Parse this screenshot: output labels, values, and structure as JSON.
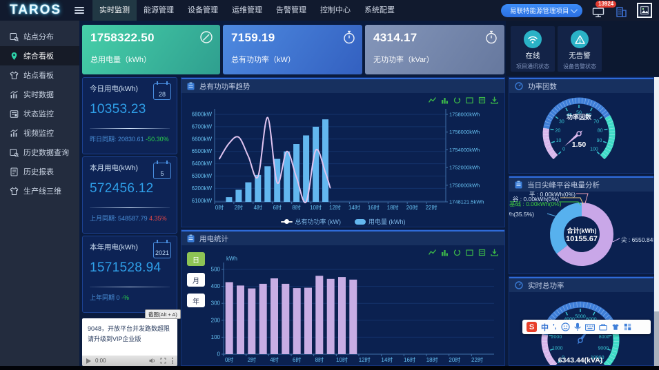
{
  "topbar": {
    "logo": "TAROS",
    "nav": [
      {
        "label": "实时监测"
      },
      {
        "label": "能源管理"
      },
      {
        "label": "设备管理"
      },
      {
        "label": "运维管理"
      },
      {
        "label": "告警管理"
      },
      {
        "label": "控制中心"
      },
      {
        "label": "系统配置"
      }
    ],
    "project_select": "易联特能源管理项目",
    "alarm_badge": "13924"
  },
  "sidebar": [
    {
      "label": "站点分布"
    },
    {
      "label": "综合看板"
    },
    {
      "label": "站点看板"
    },
    {
      "label": "实时数据"
    },
    {
      "label": "状态监控"
    },
    {
      "label": "视频监控"
    },
    {
      "label": "历史数据查询"
    },
    {
      "label": "历史报表"
    },
    {
      "label": "生产线三维"
    }
  ],
  "kpis": [
    {
      "value": "1758322.50",
      "label": "总用电量（kWh）"
    },
    {
      "value": "7159.19",
      "label": "总有功功率（kW）"
    },
    {
      "value": "4314.17",
      "label": "无功功率（kVar）"
    }
  ],
  "status_tiles": [
    {
      "title": "在线",
      "subtitle": "项目通讯状态"
    },
    {
      "title": "无告警",
      "subtitle": "设备告警状态"
    }
  ],
  "stat_cards": [
    {
      "title": "今日用电(kWh)",
      "calendar_num": "28",
      "value": "10353.23",
      "compare_label": "昨日同期:",
      "compare_value": "20830.61",
      "delta": "-50.30%"
    },
    {
      "title": "本月用电(kWh)",
      "calendar_num": "5",
      "value": "572456.12",
      "compare_label": "上月同期:",
      "compare_value": "548587.79",
      "delta": "4.35%"
    },
    {
      "title": "本年用电(kWh)",
      "calendar_num": "2021",
      "value": "1571528.94",
      "compare_label": "上年同期",
      "compare_value": "0",
      "delta": "-%"
    }
  ],
  "screenshot_tip": "截图(Alt + A)",
  "video": {
    "line1": "9048，开放平台并发路数超限",
    "line2": "请升级到VIP企业版",
    "time": "0:00"
  },
  "chart_data": [
    {
      "id": "power-trend",
      "type": "line+bar",
      "title": "总有功功率趋势",
      "x_categories_count": 24,
      "x_tick_labels": [
        "0时",
        "2时",
        "4时",
        "6时",
        "8时",
        "10时",
        "12时",
        "14时",
        "16时",
        "18时",
        "20时",
        "22时"
      ],
      "left_axis": {
        "max": 6800,
        "tick_step": 100,
        "tick_labels": [
          "6800kW",
          "6700kW",
          "6600kW",
          "6500kW",
          "6400kW",
          "6300kW",
          "6200kW",
          "6100kW"
        ]
      },
      "right_axis": {
        "min": 1748121.5,
        "max": 1758000,
        "tick_labels": [
          "1758000kWh",
          "1756000kWh",
          "1754000kWh",
          "1752000kWh",
          "1750000kWh",
          "1748121.5kWh"
        ]
      },
      "legend_position": "bottom",
      "series": [
        {
          "name": "总有功功率 (kW)",
          "type": "line",
          "axis": "left",
          "color": "#dfc3ef",
          "x": [
            0,
            1,
            2,
            3,
            4,
            5,
            6,
            7,
            8,
            9,
            10,
            11,
            11.5
          ],
          "values": [
            6440,
            6565,
            6615,
            6460,
            6295,
            6775,
            6245,
            6500,
            6290,
            6090,
            6510,
            6330,
            6205
          ]
        },
        {
          "name": "用电量 (kWh)",
          "type": "bar",
          "axis": "right",
          "color": "#63b7ef",
          "x": [
            1,
            2,
            3,
            4,
            5,
            6,
            7,
            8,
            9,
            10,
            11
          ],
          "values": [
            1748658,
            1749491,
            1750330,
            1751163,
            1752143,
            1752975,
            1753815,
            1754655,
            1755627,
            1756608,
            1757440
          ]
        }
      ]
    },
    {
      "id": "usage-stat",
      "type": "bar",
      "title": "用电统计",
      "unit": "kWh",
      "period_buttons": [
        {
          "label": "日",
          "active": true
        },
        {
          "label": "月",
          "active": false
        },
        {
          "label": "年",
          "active": false
        }
      ],
      "x_categories_count": 24,
      "x_tick_labels": [
        "0时",
        "2时",
        "4时",
        "6时",
        "8时",
        "10时",
        "12时",
        "14时",
        "16时",
        "18时",
        "20时",
        "22时"
      ],
      "y_axis": {
        "min": 0,
        "max": 500,
        "tick_labels": [
          "500",
          "400",
          "300",
          "200",
          "100",
          "0"
        ]
      },
      "series": [
        {
          "name": "用电量",
          "color": "#c8ade4",
          "x": [
            0,
            1,
            2,
            3,
            4,
            5,
            6,
            7,
            8,
            9,
            10,
            11
          ],
          "values": [
            425,
            405,
            388,
            415,
            447,
            415,
            390,
            392,
            462,
            444,
            455,
            440
          ]
        }
      ]
    },
    {
      "id": "power-factor",
      "type": "gauge",
      "title": "功率因数",
      "name": "功率因数",
      "value": 1.5,
      "value_text": "1.50",
      "min": 0,
      "max": 100,
      "tick_labels": [
        "0",
        "10",
        "20",
        "30",
        "40",
        "50",
        "60",
        "70",
        "80",
        "90",
        "100"
      ],
      "segments": [
        {
          "upto": 0.2,
          "color": "#d9b7ec"
        },
        {
          "upto": 0.72,
          "color": "#3f7fd9"
        },
        {
          "upto": 1,
          "color": "#3fdcc8"
        }
      ]
    },
    {
      "id": "peak-valley",
      "type": "donut",
      "title": "当日尖峰平谷电量分析",
      "center_label": "合计(kWh)",
      "center_value": "10155.67",
      "slices": [
        {
          "name": "尖",
          "label": "尖 : 6550.84kWh(64.5%)",
          "value": 6550.84,
          "pct": 64.5,
          "color": "#c9a7e8"
        },
        {
          "name": "峰",
          "label": "峰 : 3604.83kWh(35.5%)",
          "value": 3604.83,
          "pct": 35.5,
          "color": "#57b1ee"
        },
        {
          "name": "平",
          "label": "平 : 0.00kWh(0%)",
          "value": 0,
          "pct": 0,
          "color": "#e8a0b4"
        },
        {
          "name": "谷",
          "label": "谷 : 0.00kWh(0%)",
          "value": 0,
          "pct": 0,
          "color": "#f0d080"
        },
        {
          "name": "基础",
          "label": "基础 : 0.00kWh(0%)",
          "value": 0,
          "pct": 0,
          "color": "#3ecb3e"
        }
      ]
    },
    {
      "id": "realtime-power",
      "type": "gauge",
      "title": "实时总功率",
      "name": "视在功率",
      "value": 6343.44,
      "value_text": "6343.44(kVA)",
      "min": 0,
      "max": 10000,
      "tick_labels": [
        "0",
        "1000",
        "2000",
        "3000",
        "4000",
        "5000",
        "6000",
        "7000",
        "8000",
        "9000",
        "10000"
      ],
      "segments": [
        {
          "upto": 0.2,
          "color": "#d9b7ec"
        },
        {
          "upto": 0.72,
          "color": "#3f7fd9"
        },
        {
          "upto": 1,
          "color": "#3fdcc8"
        }
      ]
    }
  ]
}
